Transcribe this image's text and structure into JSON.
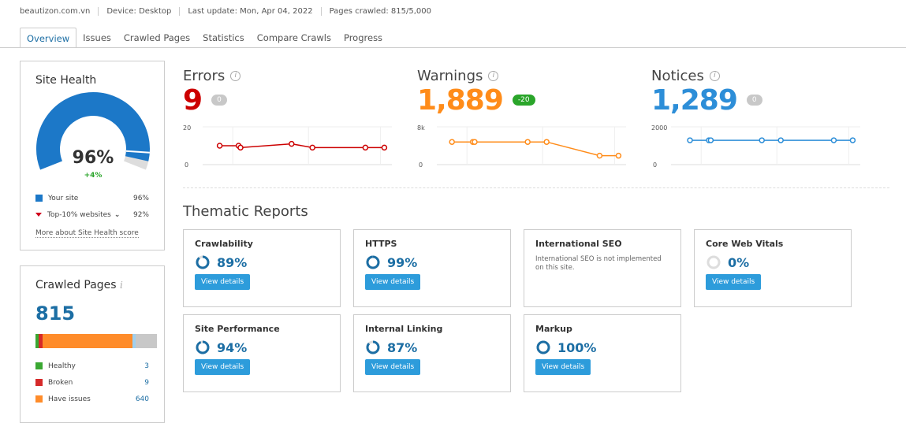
{
  "header": {
    "domain": "beautizon.com.vn",
    "device": "Device: Desktop",
    "last_update": "Last update: Mon, Apr 04, 2022",
    "pages_crawled": "Pages crawled: 815/5,000"
  },
  "tabs": [
    {
      "label": "Overview",
      "active": true
    },
    {
      "label": "Issues"
    },
    {
      "label": "Crawled Pages"
    },
    {
      "label": "Statistics"
    },
    {
      "label": "Compare Crawls"
    },
    {
      "label": "Progress"
    }
  ],
  "site_health": {
    "title": "Site Health",
    "score": "96%",
    "score_value": 96,
    "delta": "+4%",
    "legend": [
      {
        "label": "Your site",
        "value": "96%",
        "color": "#1c78c8"
      },
      {
        "label": "Top-10% websites",
        "value": "92%",
        "color": "#d0021b"
      }
    ],
    "link": "More about Site Health score"
  },
  "crawled_pages": {
    "title": "Crawled Pages",
    "total": "815",
    "segments": [
      {
        "value": 3,
        "color": "#3aa832"
      },
      {
        "value": 9,
        "color": "#d62a2a"
      },
      {
        "value": 640,
        "color": "#ff8c2a"
      },
      {
        "value": 8,
        "color": "#9fd0ef"
      },
      {
        "value": 155,
        "color": "#c8c8c8"
      }
    ],
    "legend": [
      {
        "label": "Healthy",
        "value": "3",
        "color": "#3aa832"
      },
      {
        "label": "Broken",
        "value": "9",
        "color": "#d62a2a"
      },
      {
        "label": "Have issues",
        "value": "640",
        "color": "#ff8c2a"
      }
    ]
  },
  "metrics": [
    {
      "title": "Errors",
      "value": "9",
      "delta": "0",
      "color": "#cc0000",
      "delta_color": "#c8c8c8",
      "ymax_label": "20",
      "ymin_label": "0",
      "ymax": 20,
      "points": [
        10,
        10,
        9,
        11,
        9,
        9,
        9
      ]
    },
    {
      "title": "Warnings",
      "value": "1,889",
      "delta": "-20",
      "color": "#ff8c1a",
      "delta_color": "#2aa52a",
      "ymax_label": "8k",
      "ymin_label": "0",
      "ymax": 8000,
      "points": [
        4800,
        4800,
        4800,
        4800,
        4800,
        1900,
        1889
      ]
    },
    {
      "title": "Notices",
      "value": "1,289",
      "delta": "0",
      "color": "#2d8ed8",
      "delta_color": "#c8c8c8",
      "ymax_label": "2000",
      "ymin_label": "0",
      "ymax": 2000,
      "points": [
        1289,
        1289,
        1289,
        1289,
        1289,
        1289,
        1289
      ]
    }
  ],
  "thematic": {
    "title": "Thematic Reports",
    "button": "View details",
    "cards": [
      {
        "title": "Crawlability",
        "pct": "89%",
        "value": 89
      },
      {
        "title": "HTTPS",
        "pct": "99%",
        "value": 99
      },
      {
        "title": "International SEO",
        "note": "International SEO is not implemented on this site."
      },
      {
        "title": "Core Web Vitals",
        "pct": "0%",
        "value": 0
      },
      {
        "title": "Site Performance",
        "pct": "94%",
        "value": 94
      },
      {
        "title": "Internal Linking",
        "pct": "87%",
        "value": 87
      },
      {
        "title": "Markup",
        "pct": "100%",
        "value": 100
      }
    ]
  }
}
